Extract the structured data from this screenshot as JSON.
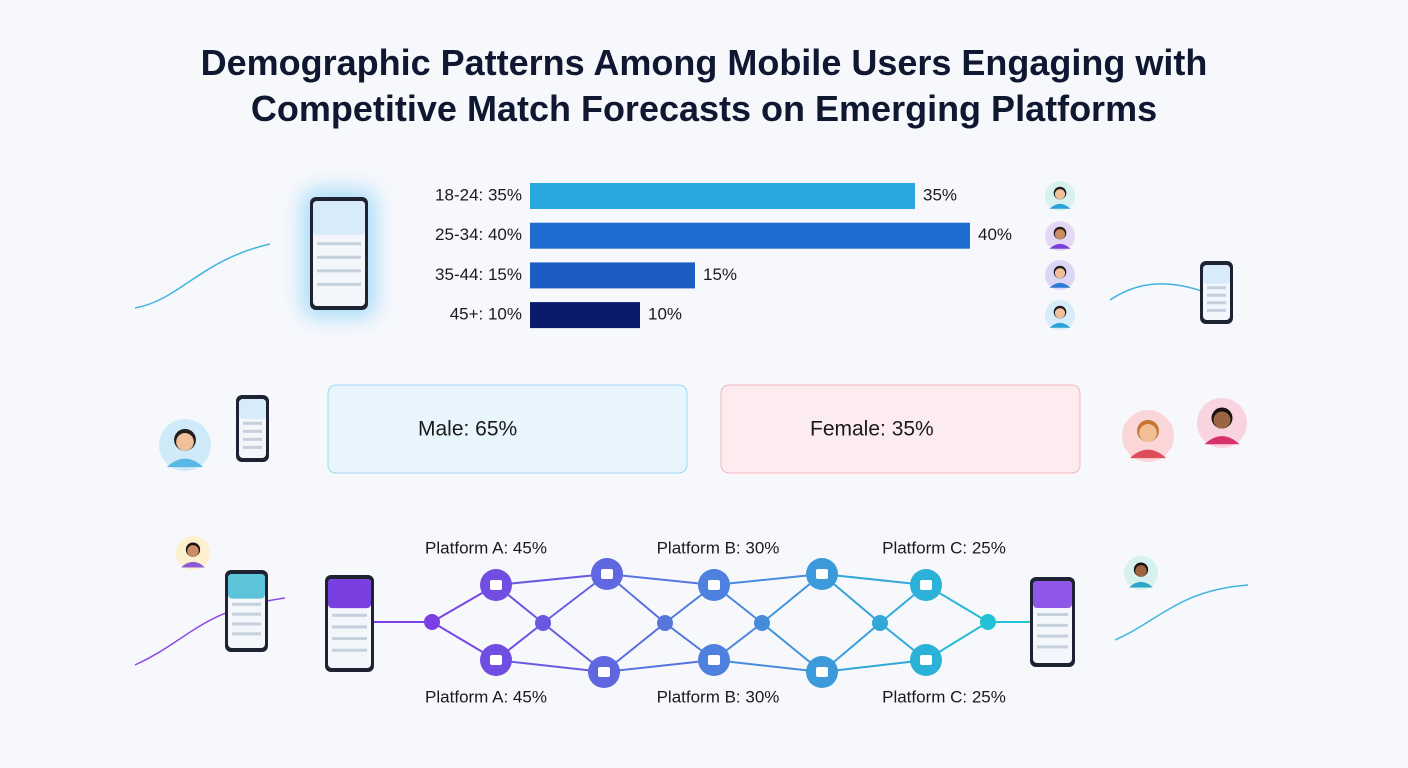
{
  "title": "Demographic Patterns Among Mobile Users Engaging with Competitive Match Forecasts on Emerging Platforms",
  "chart_data": {
    "type": "bar",
    "categories": [
      "18-24: 35%",
      "25-34: 40%",
      "35-44: 15%",
      "45+: 10%"
    ],
    "values": [
      35,
      40,
      15,
      10
    ],
    "value_labels": [
      "35%",
      "40%",
      "15%",
      "10%"
    ],
    "colors": [
      "#2aa7df",
      "#1f6cd1",
      "#1d5cc2",
      "#0c1a6b"
    ]
  },
  "gender": {
    "male": "Male: 65%",
    "female": "Female: 35%"
  },
  "platforms": {
    "top": [
      "Platform A: 45%",
      "Platform B: 30%",
      "Platform C: 25%"
    ],
    "bottom": [
      "Platform A: 45%",
      "Platform B: 30%",
      "Platform C: 25%"
    ]
  }
}
